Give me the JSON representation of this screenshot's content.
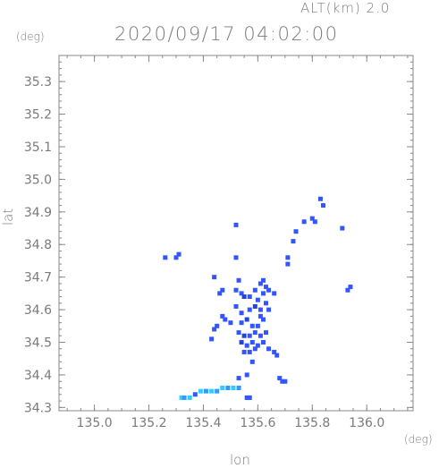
{
  "header": {
    "altitude": "ALT(km) 2.0",
    "datetime": "2020/09/17 04:02:00"
  },
  "chart_data": {
    "type": "scatter",
    "title": "2020/09/17 04:02:00",
    "subtitle": "ALT(km) 2.0",
    "xlabel": "lon",
    "ylabel": "lat",
    "xunit": "(deg)",
    "yunit": "(deg)",
    "xlim": [
      134.87,
      136.17
    ],
    "ylim": [
      34.29,
      35.38
    ],
    "xticks": [
      135.0,
      135.2,
      135.4,
      135.6,
      135.8,
      136.0
    ],
    "xtick_labels": [
      "135.0",
      "135.2",
      "135.4",
      "135.6",
      "135.8",
      "136.0"
    ],
    "yticks": [
      34.3,
      34.4,
      34.5,
      34.6,
      34.7,
      34.8,
      34.9,
      35.0,
      35.1,
      35.2,
      35.3
    ],
    "ytick_labels": [
      "34.3",
      "34.4",
      "34.5",
      "34.6",
      "34.7",
      "34.8",
      "34.9",
      "35.0",
      "35.1",
      "35.2",
      "35.3"
    ],
    "grid": false,
    "colors": {
      "frame": "#888888",
      "echo_blue": "#3355ff",
      "echo_light": "#33ccff",
      "echo_mid": "#3399ff",
      "echo_dark": "#2244dd"
    },
    "points": [
      {
        "lon": 135.83,
        "lat": 34.94,
        "c": "echo_blue"
      },
      {
        "lon": 135.84,
        "lat": 34.92,
        "c": "echo_blue"
      },
      {
        "lon": 135.8,
        "lat": 34.88,
        "c": "echo_blue"
      },
      {
        "lon": 135.81,
        "lat": 34.87,
        "c": "echo_blue"
      },
      {
        "lon": 135.77,
        "lat": 34.87,
        "c": "echo_blue"
      },
      {
        "lon": 135.91,
        "lat": 34.85,
        "c": "echo_blue"
      },
      {
        "lon": 135.52,
        "lat": 34.86,
        "c": "echo_blue"
      },
      {
        "lon": 135.74,
        "lat": 34.84,
        "c": "echo_blue"
      },
      {
        "lon": 135.73,
        "lat": 34.81,
        "c": "echo_blue"
      },
      {
        "lon": 135.31,
        "lat": 34.77,
        "c": "echo_blue"
      },
      {
        "lon": 135.3,
        "lat": 34.76,
        "c": "echo_blue"
      },
      {
        "lon": 135.26,
        "lat": 34.76,
        "c": "echo_blue"
      },
      {
        "lon": 135.52,
        "lat": 34.76,
        "c": "echo_blue"
      },
      {
        "lon": 135.71,
        "lat": 34.76,
        "c": "echo_blue"
      },
      {
        "lon": 135.71,
        "lat": 34.74,
        "c": "echo_blue"
      },
      {
        "lon": 135.93,
        "lat": 34.66,
        "c": "echo_blue"
      },
      {
        "lon": 135.94,
        "lat": 34.67,
        "c": "echo_blue"
      },
      {
        "lon": 135.44,
        "lat": 34.7,
        "c": "echo_blue"
      },
      {
        "lon": 135.47,
        "lat": 34.66,
        "c": "echo_blue"
      },
      {
        "lon": 135.46,
        "lat": 34.65,
        "c": "echo_blue"
      },
      {
        "lon": 135.53,
        "lat": 34.69,
        "c": "echo_blue"
      },
      {
        "lon": 135.52,
        "lat": 34.66,
        "c": "echo_blue"
      },
      {
        "lon": 135.54,
        "lat": 34.65,
        "c": "echo_blue"
      },
      {
        "lon": 135.55,
        "lat": 34.64,
        "c": "echo_dark"
      },
      {
        "lon": 135.57,
        "lat": 34.64,
        "c": "echo_blue"
      },
      {
        "lon": 135.59,
        "lat": 34.66,
        "c": "echo_blue"
      },
      {
        "lon": 135.61,
        "lat": 34.68,
        "c": "echo_blue"
      },
      {
        "lon": 135.62,
        "lat": 34.69,
        "c": "echo_blue"
      },
      {
        "lon": 135.63,
        "lat": 34.67,
        "c": "echo_blue"
      },
      {
        "lon": 135.62,
        "lat": 34.65,
        "c": "echo_blue"
      },
      {
        "lon": 135.64,
        "lat": 34.66,
        "c": "echo_blue"
      },
      {
        "lon": 135.66,
        "lat": 34.65,
        "c": "echo_blue"
      },
      {
        "lon": 135.6,
        "lat": 34.63,
        "c": "echo_blue"
      },
      {
        "lon": 135.52,
        "lat": 34.61,
        "c": "echo_blue"
      },
      {
        "lon": 135.54,
        "lat": 34.59,
        "c": "echo_blue"
      },
      {
        "lon": 135.57,
        "lat": 34.6,
        "c": "echo_blue"
      },
      {
        "lon": 135.59,
        "lat": 34.61,
        "c": "echo_dark"
      },
      {
        "lon": 135.61,
        "lat": 34.6,
        "c": "echo_blue"
      },
      {
        "lon": 135.63,
        "lat": 34.62,
        "c": "echo_blue"
      },
      {
        "lon": 135.64,
        "lat": 34.6,
        "c": "echo_blue"
      },
      {
        "lon": 135.61,
        "lat": 34.58,
        "c": "echo_blue"
      },
      {
        "lon": 135.47,
        "lat": 34.58,
        "c": "echo_blue"
      },
      {
        "lon": 135.48,
        "lat": 34.57,
        "c": "echo_blue"
      },
      {
        "lon": 135.5,
        "lat": 34.56,
        "c": "echo_blue"
      },
      {
        "lon": 135.54,
        "lat": 34.56,
        "c": "echo_blue"
      },
      {
        "lon": 135.56,
        "lat": 34.57,
        "c": "echo_dark"
      },
      {
        "lon": 135.58,
        "lat": 34.55,
        "c": "echo_blue"
      },
      {
        "lon": 135.6,
        "lat": 34.55,
        "c": "echo_blue"
      },
      {
        "lon": 135.62,
        "lat": 34.57,
        "c": "echo_blue"
      },
      {
        "lon": 135.44,
        "lat": 34.54,
        "c": "echo_blue"
      },
      {
        "lon": 135.45,
        "lat": 34.55,
        "c": "echo_blue"
      },
      {
        "lon": 135.53,
        "lat": 34.53,
        "c": "echo_blue"
      },
      {
        "lon": 135.55,
        "lat": 34.52,
        "c": "echo_dark"
      },
      {
        "lon": 135.57,
        "lat": 34.52,
        "c": "echo_blue"
      },
      {
        "lon": 135.59,
        "lat": 34.53,
        "c": "echo_blue"
      },
      {
        "lon": 135.61,
        "lat": 34.52,
        "c": "echo_blue"
      },
      {
        "lon": 135.63,
        "lat": 34.53,
        "c": "echo_blue"
      },
      {
        "lon": 135.43,
        "lat": 34.51,
        "c": "echo_blue"
      },
      {
        "lon": 135.54,
        "lat": 34.5,
        "c": "echo_dark"
      },
      {
        "lon": 135.56,
        "lat": 34.49,
        "c": "echo_blue"
      },
      {
        "lon": 135.58,
        "lat": 34.5,
        "c": "echo_blue"
      },
      {
        "lon": 135.6,
        "lat": 34.49,
        "c": "echo_blue"
      },
      {
        "lon": 135.62,
        "lat": 34.5,
        "c": "echo_blue"
      },
      {
        "lon": 135.55,
        "lat": 34.47,
        "c": "echo_blue"
      },
      {
        "lon": 135.57,
        "lat": 34.47,
        "c": "echo_blue"
      },
      {
        "lon": 135.59,
        "lat": 34.48,
        "c": "echo_blue"
      },
      {
        "lon": 135.64,
        "lat": 34.48,
        "c": "echo_blue"
      },
      {
        "lon": 135.66,
        "lat": 34.47,
        "c": "echo_blue"
      },
      {
        "lon": 135.67,
        "lat": 34.46,
        "c": "echo_blue"
      },
      {
        "lon": 135.58,
        "lat": 34.44,
        "c": "echo_blue"
      },
      {
        "lon": 135.53,
        "lat": 34.39,
        "c": "echo_blue"
      },
      {
        "lon": 135.56,
        "lat": 34.4,
        "c": "echo_blue"
      },
      {
        "lon": 135.68,
        "lat": 34.39,
        "c": "echo_blue"
      },
      {
        "lon": 135.69,
        "lat": 34.38,
        "c": "echo_blue"
      },
      {
        "lon": 135.7,
        "lat": 34.38,
        "c": "echo_blue"
      },
      {
        "lon": 135.32,
        "lat": 34.33,
        "c": "echo_light"
      },
      {
        "lon": 135.33,
        "lat": 34.33,
        "c": "echo_mid"
      },
      {
        "lon": 135.35,
        "lat": 34.33,
        "c": "echo_light"
      },
      {
        "lon": 135.37,
        "lat": 34.34,
        "c": "echo_blue"
      },
      {
        "lon": 135.39,
        "lat": 34.35,
        "c": "echo_light"
      },
      {
        "lon": 135.41,
        "lat": 34.35,
        "c": "echo_mid"
      },
      {
        "lon": 135.43,
        "lat": 34.35,
        "c": "echo_light"
      },
      {
        "lon": 135.45,
        "lat": 34.35,
        "c": "echo_mid"
      },
      {
        "lon": 135.47,
        "lat": 34.36,
        "c": "echo_light"
      },
      {
        "lon": 135.49,
        "lat": 34.36,
        "c": "echo_mid"
      },
      {
        "lon": 135.51,
        "lat": 34.36,
        "c": "echo_light"
      },
      {
        "lon": 135.53,
        "lat": 34.36,
        "c": "echo_mid"
      },
      {
        "lon": 135.56,
        "lat": 34.33,
        "c": "echo_blue"
      },
      {
        "lon": 135.57,
        "lat": 34.33,
        "c": "echo_blue"
      }
    ]
  }
}
